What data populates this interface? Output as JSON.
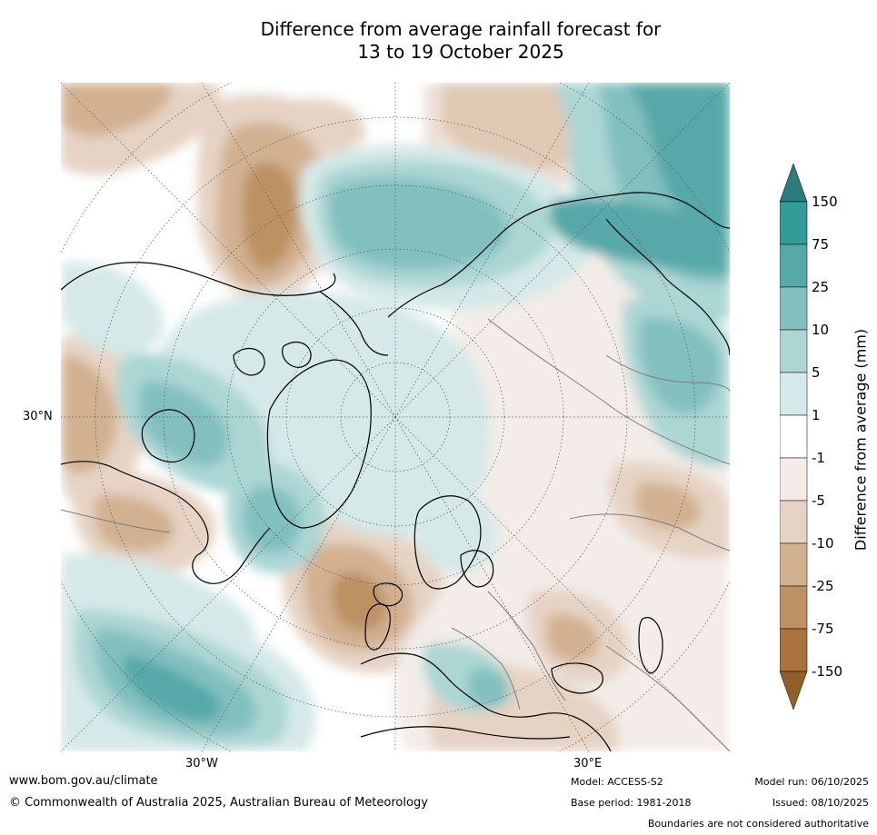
{
  "title": {
    "line1": "Difference from average rainfall forecast for",
    "line2": "13 to 19 October 2025"
  },
  "map": {
    "projection": "north polar stereographic",
    "graticule_labels": {
      "lat_30n": "30°N",
      "lon_30w": "30°W",
      "lon_30e": "30°E"
    }
  },
  "legend": {
    "title": "Difference from average (mm)",
    "ticks": [
      "150",
      "75",
      "25",
      "10",
      "5",
      "1",
      "-1",
      "-5",
      "-10",
      "-25",
      "-75",
      "-150"
    ],
    "colors": {
      "above_150": "#2a7d7b",
      "75_to_150": "#339c99",
      "25_to_75": "#57a9a8",
      "10_to_25": "#82c0bf",
      "5_to_10": "#abd6d4",
      "1_to_5": "#d5e9e8",
      "-1_to_1": "#ffffff",
      "-5_to_-1": "#f3ece8",
      "-10_to_-5": "#e6d3c4",
      "-25_to_-10": "#d2b191",
      "-75_to_-25": "#be9164",
      "-150_to_-75": "#aa733d",
      "below_-150": "#935e28"
    }
  },
  "footer": {
    "url": "www.bom.gov.au/climate",
    "copyright": "© Commonwealth of Australia 2025, Australian Bureau of Meteorology",
    "model": "Model: ACCESS-S2",
    "base_period": "Base period: 1981-2018",
    "model_run": "Model run: 06/10/2025",
    "issued": "Issued: 08/10/2025",
    "disclaimer": "Boundaries are not considered authoritative"
  }
}
